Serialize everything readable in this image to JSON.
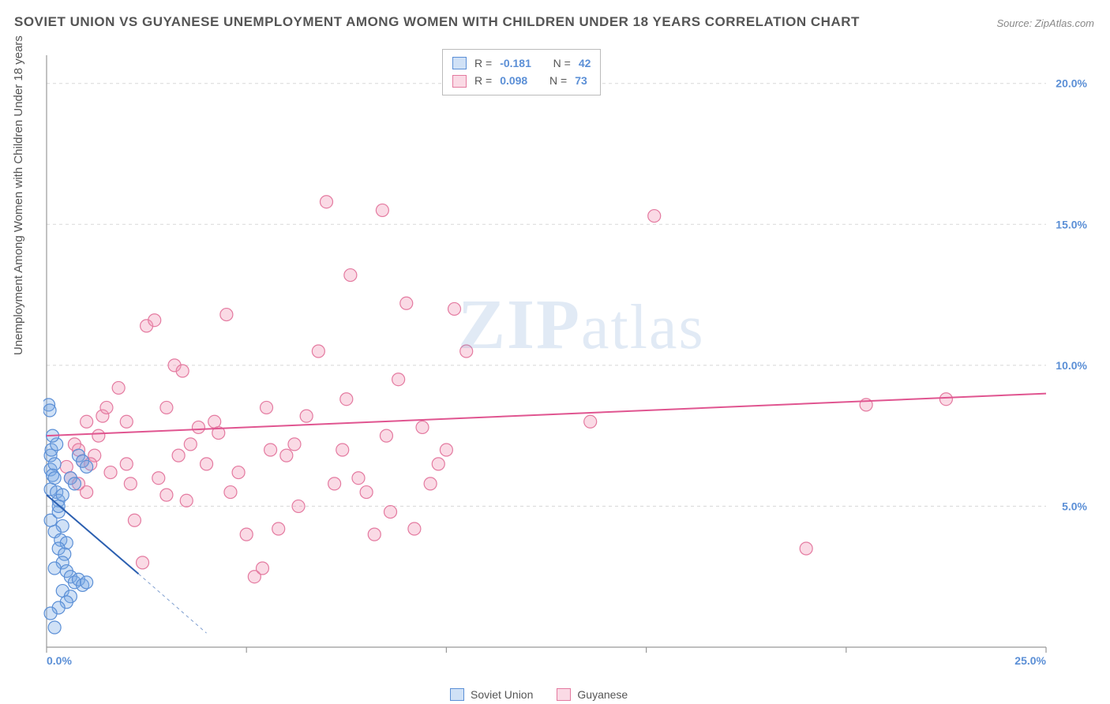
{
  "title": "SOVIET UNION VS GUYANESE UNEMPLOYMENT AMONG WOMEN WITH CHILDREN UNDER 18 YEARS CORRELATION CHART",
  "source": "Source: ZipAtlas.com",
  "ylabel": "Unemployment Among Women with Children Under 18 years",
  "watermark_bold": "ZIP",
  "watermark_light": "atlas",
  "chart": {
    "type": "scatter",
    "xlim": [
      0,
      25
    ],
    "ylim": [
      0,
      21
    ],
    "xtick_step": 5,
    "xtick_labels": [
      "0.0%",
      "",
      "",
      "",
      "",
      "25.0%"
    ],
    "ytick_values": [
      5,
      10,
      15,
      20
    ],
    "ytick_labels": [
      "5.0%",
      "10.0%",
      "15.0%",
      "20.0%"
    ],
    "background_color": "#ffffff",
    "grid_color": "#d8d8d8",
    "axis_color": "#999999",
    "marker_radius": 8,
    "marker_stroke_width": 1.2,
    "series": [
      {
        "name": "Soviet Union",
        "color_fill": "rgba(120,170,230,0.35)",
        "color_stroke": "#5b8fd6",
        "R": "-0.181",
        "N": "42",
        "trend": {
          "x1": 0,
          "y1": 5.4,
          "x2": 2.3,
          "y2": 2.6,
          "dash_x2": 4.0,
          "dash_y2": 0.5,
          "color": "#2b5fb0",
          "width": 2
        },
        "points": [
          [
            0.05,
            8.6
          ],
          [
            0.08,
            8.4
          ],
          [
            0.1,
            6.8
          ],
          [
            0.12,
            7.0
          ],
          [
            0.1,
            6.3
          ],
          [
            0.15,
            6.1
          ],
          [
            0.2,
            6.5
          ],
          [
            0.2,
            6.0
          ],
          [
            0.1,
            5.6
          ],
          [
            0.25,
            5.5
          ],
          [
            0.3,
            5.2
          ],
          [
            0.1,
            4.5
          ],
          [
            0.3,
            4.8
          ],
          [
            0.4,
            4.3
          ],
          [
            0.2,
            4.1
          ],
          [
            0.35,
            3.8
          ],
          [
            0.5,
            3.7
          ],
          [
            0.3,
            3.5
          ],
          [
            0.45,
            3.3
          ],
          [
            0.4,
            3.0
          ],
          [
            0.2,
            2.8
          ],
          [
            0.5,
            2.7
          ],
          [
            0.6,
            2.5
          ],
          [
            0.7,
            2.3
          ],
          [
            0.8,
            2.4
          ],
          [
            0.9,
            2.2
          ],
          [
            1.0,
            2.3
          ],
          [
            0.4,
            2.0
          ],
          [
            0.6,
            1.8
          ],
          [
            0.5,
            1.6
          ],
          [
            0.3,
            1.4
          ],
          [
            0.1,
            1.2
          ],
          [
            0.2,
            0.7
          ],
          [
            0.8,
            6.8
          ],
          [
            0.9,
            6.6
          ],
          [
            1.0,
            6.4
          ],
          [
            0.6,
            6.0
          ],
          [
            0.7,
            5.8
          ],
          [
            0.4,
            5.4
          ],
          [
            0.3,
            5.0
          ],
          [
            0.25,
            7.2
          ],
          [
            0.15,
            7.5
          ]
        ]
      },
      {
        "name": "Guyanese",
        "color_fill": "rgba(240,150,180,0.35)",
        "color_stroke": "#e47aa0",
        "R": "0.098",
        "N": "73",
        "trend": {
          "x1": 0,
          "y1": 7.5,
          "x2": 25,
          "y2": 9.0,
          "color": "#e05590",
          "width": 2
        },
        "points": [
          [
            0.5,
            6.4
          ],
          [
            0.6,
            6.0
          ],
          [
            0.7,
            7.2
          ],
          [
            0.8,
            7.0
          ],
          [
            0.9,
            6.6
          ],
          [
            1.0,
            5.5
          ],
          [
            1.2,
            6.8
          ],
          [
            1.3,
            7.5
          ],
          [
            1.4,
            8.2
          ],
          [
            1.5,
            8.5
          ],
          [
            1.8,
            9.2
          ],
          [
            2.0,
            6.5
          ],
          [
            2.1,
            5.8
          ],
          [
            2.2,
            4.5
          ],
          [
            2.4,
            3.0
          ],
          [
            2.5,
            11.4
          ],
          [
            2.7,
            11.6
          ],
          [
            3.0,
            8.5
          ],
          [
            3.2,
            10.0
          ],
          [
            3.4,
            9.8
          ],
          [
            3.5,
            5.2
          ],
          [
            3.6,
            7.2
          ],
          [
            3.8,
            7.8
          ],
          [
            4.0,
            6.5
          ],
          [
            4.2,
            8.0
          ],
          [
            4.5,
            11.8
          ],
          [
            4.6,
            5.5
          ],
          [
            5.0,
            4.0
          ],
          [
            5.2,
            2.5
          ],
          [
            5.4,
            2.8
          ],
          [
            5.6,
            7.0
          ],
          [
            5.8,
            4.2
          ],
          [
            6.0,
            6.8
          ],
          [
            6.2,
            7.2
          ],
          [
            6.5,
            8.2
          ],
          [
            6.8,
            10.5
          ],
          [
            7.0,
            15.8
          ],
          [
            7.2,
            5.8
          ],
          [
            7.4,
            7.0
          ],
          [
            7.6,
            13.2
          ],
          [
            7.8,
            6.0
          ],
          [
            8.0,
            5.5
          ],
          [
            8.2,
            4.0
          ],
          [
            8.4,
            15.5
          ],
          [
            8.6,
            4.8
          ],
          [
            8.8,
            9.5
          ],
          [
            9.0,
            12.2
          ],
          [
            9.2,
            4.2
          ],
          [
            9.4,
            7.8
          ],
          [
            9.6,
            5.8
          ],
          [
            10.0,
            7.0
          ],
          [
            10.2,
            12.0
          ],
          [
            10.5,
            10.5
          ],
          [
            13.6,
            8.0
          ],
          [
            15.2,
            15.3
          ],
          [
            19.0,
            3.5
          ],
          [
            20.5,
            8.6
          ],
          [
            22.5,
            8.8
          ],
          [
            1.6,
            6.2
          ],
          [
            2.8,
            6.0
          ],
          [
            3.0,
            5.4
          ],
          [
            4.8,
            6.2
          ],
          [
            5.5,
            8.5
          ],
          [
            6.3,
            5.0
          ],
          [
            7.5,
            8.8
          ],
          [
            8.5,
            7.5
          ],
          [
            1.0,
            8.0
          ],
          [
            1.1,
            6.5
          ],
          [
            0.8,
            5.8
          ],
          [
            2.0,
            8.0
          ],
          [
            3.3,
            6.8
          ],
          [
            4.3,
            7.6
          ],
          [
            9.8,
            6.5
          ]
        ]
      }
    ]
  },
  "stats_labels": {
    "R": "R =",
    "N": "N ="
  },
  "legend": {
    "items": [
      {
        "label": "Soviet Union",
        "fill": "rgba(120,170,230,0.35)",
        "stroke": "#5b8fd6"
      },
      {
        "label": "Guyanese",
        "fill": "rgba(240,150,180,0.35)",
        "stroke": "#e47aa0"
      }
    ]
  }
}
